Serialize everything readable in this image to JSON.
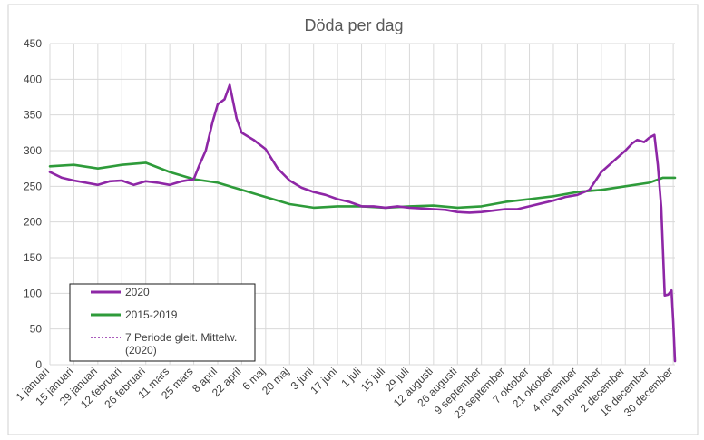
{
  "chart_data": {
    "type": "line",
    "title": "Döda per dag",
    "xlabel": "",
    "ylabel": "",
    "ylim": [
      0,
      450
    ],
    "yticks": [
      0,
      50,
      100,
      150,
      200,
      250,
      300,
      350,
      400,
      450
    ],
    "x_tick_labels": [
      "1 januari",
      "15 januari",
      "29 januari",
      "12 februari",
      "26 februari",
      "11 mars",
      "25 mars",
      "8 april",
      "22 april",
      "6 maj",
      "20 maj",
      "3 juni",
      "17 juni",
      "1 juli",
      "15 juli",
      "29 juli",
      "12 augusti",
      "26 augusti",
      "9 september",
      "23 september",
      "7 oktober",
      "21 oktober",
      "4 november",
      "18 november",
      "2 december",
      "16 december",
      "30 december"
    ],
    "x_tick_days": [
      1,
      15,
      29,
      43,
      57,
      71,
      85,
      99,
      113,
      127,
      141,
      155,
      169,
      183,
      197,
      211,
      225,
      239,
      253,
      267,
      281,
      295,
      309,
      323,
      337,
      351,
      365
    ],
    "grid": true,
    "legend_position": "bottom-left",
    "series": [
      {
        "name": "2020",
        "color": "#8e27a6",
        "style": "solid",
        "x": [
          1,
          8,
          15,
          22,
          29,
          36,
          43,
          50,
          57,
          64,
          71,
          78,
          85,
          88,
          92,
          96,
          99,
          103,
          106,
          110,
          113,
          120,
          127,
          134,
          141,
          148,
          155,
          162,
          169,
          176,
          183,
          190,
          197,
          204,
          211,
          218,
          225,
          232,
          239,
          246,
          253,
          260,
          267,
          274,
          281,
          288,
          295,
          302,
          309,
          316,
          323,
          330,
          337,
          341,
          344,
          348,
          351,
          354,
          356,
          358,
          360,
          362,
          364,
          365,
          366
        ],
        "values": [
          270,
          262,
          258,
          255,
          252,
          257,
          258,
          252,
          257,
          255,
          252,
          257,
          260,
          278,
          300,
          340,
          365,
          372,
          392,
          345,
          325,
          315,
          302,
          275,
          258,
          248,
          242,
          238,
          232,
          228,
          222,
          222,
          220,
          222,
          220,
          219,
          218,
          217,
          214,
          213,
          214,
          216,
          218,
          218,
          222,
          226,
          230,
          235,
          238,
          245,
          270,
          285,
          300,
          310,
          315,
          312,
          318,
          322,
          280,
          220,
          97,
          98,
          104,
          60,
          5
        ]
      },
      {
        "name": "2015-2019",
        "color": "#2e9b3a",
        "style": "solid",
        "x": [
          1,
          15,
          29,
          43,
          57,
          71,
          85,
          99,
          113,
          127,
          141,
          155,
          169,
          183,
          197,
          211,
          225,
          239,
          253,
          267,
          281,
          295,
          309,
          323,
          337,
          351,
          359,
          366
        ],
        "values": [
          278,
          280,
          275,
          280,
          283,
          270,
          260,
          255,
          245,
          235,
          225,
          220,
          222,
          222,
          220,
          222,
          223,
          220,
          222,
          228,
          232,
          236,
          242,
          245,
          250,
          255,
          262,
          262
        ]
      },
      {
        "name": "7 Periode gleit. Mittelw. (2020)",
        "color": "#8e27a6",
        "style": "dotted",
        "x": [
          1,
          8,
          15,
          22,
          29,
          36,
          43,
          50,
          57,
          64,
          71,
          78,
          85,
          88,
          92,
          96,
          99,
          103,
          106,
          110,
          113,
          120,
          127,
          134,
          141,
          148,
          155,
          162,
          169,
          176,
          183,
          190,
          197,
          204,
          211,
          218,
          225,
          232,
          239,
          246,
          253,
          260,
          267,
          274,
          281,
          288,
          295,
          302,
          309,
          316,
          323,
          330,
          337,
          341,
          344,
          348,
          351,
          354,
          356,
          358,
          360,
          362,
          364,
          365,
          366
        ],
        "values": [
          270,
          262,
          258,
          255,
          252,
          257,
          258,
          252,
          257,
          255,
          252,
          257,
          260,
          278,
          300,
          340,
          365,
          372,
          392,
          345,
          325,
          315,
          302,
          275,
          258,
          248,
          242,
          238,
          232,
          228,
          222,
          222,
          220,
          222,
          220,
          219,
          218,
          217,
          214,
          213,
          214,
          216,
          218,
          218,
          222,
          226,
          230,
          235,
          238,
          245,
          270,
          285,
          300,
          310,
          315,
          312,
          318,
          322,
          280,
          220,
          97,
          98,
          104,
          60,
          5
        ]
      }
    ],
    "legend": [
      {
        "label": "2020",
        "color": "#8e27a6",
        "style": "solid"
      },
      {
        "label": "2015-2019",
        "color": "#2e9b3a",
        "style": "solid"
      },
      {
        "label": "7 Periode gleit. Mittelw. (2020)",
        "color": "#8e27a6",
        "style": "dotted"
      }
    ]
  }
}
